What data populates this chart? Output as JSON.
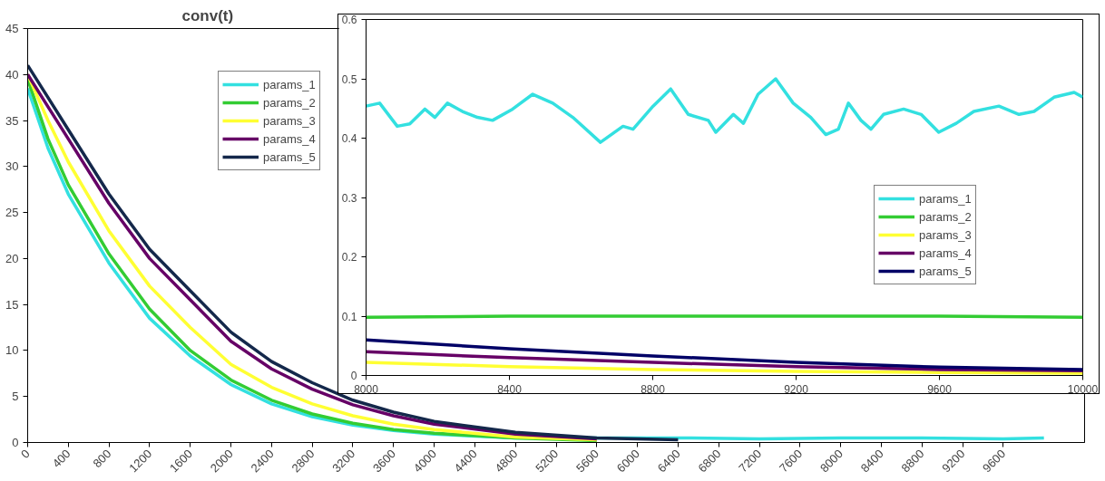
{
  "chart_data": [
    {
      "type": "line",
      "title": "conv(t)",
      "legend": "top left",
      "grid": false,
      "x": [
        0,
        200,
        400,
        800,
        1200,
        1600,
        2000,
        2400,
        2800,
        3200,
        3600,
        4000,
        4800,
        5600,
        6400,
        7200,
        8000,
        8800,
        9600,
        10000
      ],
      "xlim": [
        0,
        10400
      ],
      "xticks": [
        0,
        400,
        800,
        1200,
        1600,
        2000,
        2400,
        2800,
        3200,
        3600,
        4000,
        4400,
        4800,
        5200,
        5600,
        6000,
        6400,
        6800,
        7200,
        7600,
        8000,
        8400,
        8800,
        9200,
        9600
      ],
      "ylim": [
        0,
        45
      ],
      "yticks": [
        0,
        5,
        10,
        15,
        20,
        25,
        30,
        35,
        40,
        45
      ],
      "series": [
        {
          "name": "params_1",
          "color": "#33e0e0",
          "values": [
            38.5,
            32,
            27,
            19.5,
            13.5,
            9.4,
            6.3,
            4.2,
            2.8,
            1.9,
            1.3,
            0.9,
            0.5,
            0.5,
            0.5,
            0.4,
            0.5,
            0.5,
            0.4,
            0.5
          ]
        },
        {
          "name": "params_2",
          "color": "#33cc33",
          "values": [
            39.5,
            33,
            28,
            20.5,
            14.5,
            10,
            6.8,
            4.6,
            3.1,
            2.1,
            1.4,
            1,
            0.5,
            0.2,
            null,
            null,
            null,
            null,
            null,
            null
          ]
        },
        {
          "name": "params_3",
          "color": "#ffff33",
          "values": [
            40,
            35,
            30.5,
            23,
            17,
            12.5,
            8.5,
            6,
            4.2,
            2.9,
            2,
            1.4,
            0.6,
            0.3,
            null,
            null,
            null,
            null,
            null,
            null
          ]
        },
        {
          "name": "params_4",
          "color": "#660066",
          "values": [
            40,
            36.5,
            33,
            26,
            20,
            15.5,
            11,
            8,
            5.8,
            4.1,
            2.9,
            2,
            0.9,
            0.4,
            null,
            null,
            null,
            null,
            null,
            null
          ]
        },
        {
          "name": "params_5",
          "color": "#14284b",
          "values": [
            41,
            37.5,
            34,
            27,
            21,
            16.5,
            12,
            8.8,
            6.5,
            4.6,
            3.3,
            2.3,
            1.1,
            0.5,
            0.3,
            null,
            null,
            null,
            null,
            null
          ]
        }
      ]
    },
    {
      "type": "line",
      "legend": "right",
      "grid": false,
      "xlim": [
        8000,
        10000
      ],
      "xticks": [
        8000,
        8400,
        8800,
        9200,
        9600,
        10000
      ],
      "ylim": [
        0,
        0.6
      ],
      "yticks": [
        0,
        0.1,
        0.2,
        0.3,
        0.4,
        0.5,
        0.6
      ],
      "series": [
        {
          "name": "params_1",
          "color": "#33e0e0",
          "x": [
            8000,
            8038,
            8087,
            8122,
            8164,
            8192,
            8227,
            8269,
            8311,
            8353,
            8409,
            8465,
            8521,
            8577,
            8654,
            8717,
            8745,
            8801,
            8850,
            8899,
            8955,
            8976,
            9025,
            9053,
            9094,
            9143,
            9192,
            9241,
            9283,
            9318,
            9346,
            9381,
            9409,
            9444,
            9500,
            9549,
            9598,
            9647,
            9696,
            9766,
            9822,
            9864,
            9920,
            9976,
            10000
          ],
          "values": [
            0.454,
            0.459,
            0.42,
            0.424,
            0.449,
            0.435,
            0.459,
            0.445,
            0.435,
            0.43,
            0.449,
            0.474,
            0.459,
            0.435,
            0.393,
            0.42,
            0.415,
            0.454,
            0.483,
            0.44,
            0.43,
            0.41,
            0.44,
            0.425,
            0.474,
            0.5,
            0.459,
            0.435,
            0.406,
            0.415,
            0.459,
            0.43,
            0.415,
            0.44,
            0.449,
            0.44,
            0.41,
            0.425,
            0.445,
            0.454,
            0.44,
            0.445,
            0.469,
            0.477,
            0.469
          ]
        },
        {
          "name": "params_2",
          "color": "#33cc33",
          "x": [
            8000,
            8400,
            8800,
            9200,
            9600,
            10000
          ],
          "values": [
            0.098,
            0.1,
            0.1,
            0.1,
            0.1,
            0.098
          ]
        },
        {
          "name": "params_3",
          "color": "#ffff33",
          "x": [
            8000,
            8400,
            8800,
            9200,
            9600,
            10000
          ],
          "values": [
            0.022,
            0.015,
            0.01,
            0.007,
            0.005,
            0.004
          ]
        },
        {
          "name": "params_4",
          "color": "#660066",
          "x": [
            8000,
            8400,
            8800,
            9200,
            9600,
            10000
          ],
          "values": [
            0.04,
            0.03,
            0.022,
            0.015,
            0.01,
            0.008
          ]
        },
        {
          "name": "params_5",
          "color": "#000066",
          "x": [
            8000,
            8400,
            8800,
            9200,
            9600,
            10000
          ],
          "values": [
            0.06,
            0.045,
            0.033,
            0.022,
            0.014,
            0.01
          ]
        }
      ]
    }
  ]
}
